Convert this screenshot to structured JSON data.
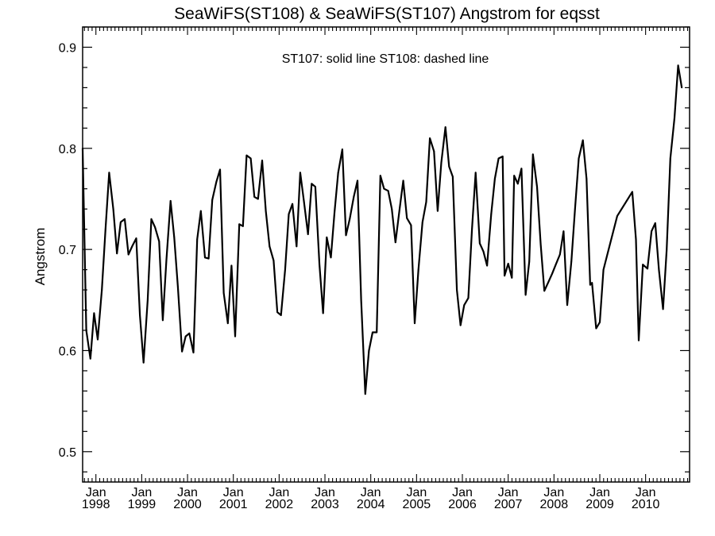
{
  "chart_data": {
    "type": "line",
    "title": "SeaWiFS(ST108) & SeaWiFS(ST107)  Angstrom for eqsst",
    "annotation": "ST107: solid line   ST108: dashed line",
    "xlabel": "",
    "ylabel": "Angstrom",
    "x_unit": "decimal year",
    "xlim": [
      1997.71,
      2010.96
    ],
    "ylim": [
      0.47,
      0.92
    ],
    "y_ticks": [
      0.5,
      0.6,
      0.7,
      0.8,
      0.9
    ],
    "y_tick_labels": [
      "0.5",
      "0.6",
      "0.7",
      "0.8",
      "0.9"
    ],
    "x_ticks": [
      {
        "x": 1998,
        "month": "Jan",
        "year": "1998"
      },
      {
        "x": 1999,
        "month": "Jan",
        "year": "1999"
      },
      {
        "x": 2000,
        "month": "Jan",
        "year": "2000"
      },
      {
        "x": 2001,
        "month": "Jan",
        "year": "2001"
      },
      {
        "x": 2002,
        "month": "Jan",
        "year": "2002"
      },
      {
        "x": 2003,
        "month": "Jan",
        "year": "2003"
      },
      {
        "x": 2004,
        "month": "Jan",
        "year": "2004"
      },
      {
        "x": 2005,
        "month": "Jan",
        "year": "2005"
      },
      {
        "x": 2006,
        "month": "Jan",
        "year": "2006"
      },
      {
        "x": 2007,
        "month": "Jan",
        "year": "2007"
      },
      {
        "x": 2008,
        "month": "Jan",
        "year": "2008"
      },
      {
        "x": 2009,
        "month": "Jan",
        "year": "2009"
      },
      {
        "x": 2010,
        "month": "Jan",
        "year": "2010"
      }
    ],
    "grid": false,
    "series": [
      {
        "name": "ST107",
        "style": "solid",
        "color": "#000000",
        "points": [
          [
            1997.71,
            0.8
          ],
          [
            1997.79,
            0.62
          ],
          [
            1997.88,
            0.592
          ],
          [
            1997.96,
            0.637
          ],
          [
            1998.04,
            0.611
          ],
          [
            1998.13,
            0.66
          ],
          [
            1998.21,
            0.72
          ],
          [
            1998.29,
            0.776
          ],
          [
            1998.38,
            0.74
          ],
          [
            1998.46,
            0.696
          ],
          [
            1998.54,
            0.727
          ],
          [
            1998.63,
            0.73
          ],
          [
            1998.71,
            0.695
          ],
          [
            1998.79,
            0.703
          ],
          [
            1998.88,
            0.711
          ],
          [
            1998.96,
            0.635
          ],
          [
            1999.04,
            0.588
          ],
          [
            1999.13,
            0.65
          ],
          [
            1999.21,
            0.73
          ],
          [
            1999.29,
            0.722
          ],
          [
            1999.38,
            0.708
          ],
          [
            1999.46,
            0.63
          ],
          [
            1999.54,
            0.69
          ],
          [
            1999.63,
            0.748
          ],
          [
            1999.71,
            0.712
          ],
          [
            1999.79,
            0.663
          ],
          [
            1999.88,
            0.599
          ],
          [
            1999.96,
            0.614
          ],
          [
            2000.04,
            0.617
          ],
          [
            2000.13,
            0.598
          ],
          [
            2000.21,
            0.71
          ],
          [
            2000.29,
            0.738
          ],
          [
            2000.38,
            0.692
          ],
          [
            2000.46,
            0.691
          ],
          [
            2000.54,
            0.749
          ],
          [
            2000.63,
            0.767
          ],
          [
            2000.71,
            0.779
          ],
          [
            2000.79,
            0.657
          ],
          [
            2000.88,
            0.627
          ],
          [
            2000.96,
            0.684
          ],
          [
            2001.04,
            0.614
          ],
          [
            2001.13,
            0.725
          ],
          [
            2001.21,
            0.723
          ],
          [
            2001.29,
            0.793
          ],
          [
            2001.38,
            0.79
          ],
          [
            2001.46,
            0.752
          ],
          [
            2001.54,
            0.75
          ],
          [
            2001.63,
            0.788
          ],
          [
            2001.71,
            0.738
          ],
          [
            2001.79,
            0.703
          ],
          [
            2001.88,
            0.689
          ],
          [
            2001.96,
            0.638
          ],
          [
            2002.04,
            0.635
          ],
          [
            2002.13,
            0.68
          ],
          [
            2002.21,
            0.735
          ],
          [
            2002.29,
            0.745
          ],
          [
            2002.38,
            0.703
          ],
          [
            2002.46,
            0.776
          ],
          [
            2002.54,
            0.748
          ],
          [
            2002.63,
            0.715
          ],
          [
            2002.71,
            0.765
          ],
          [
            2002.79,
            0.762
          ],
          [
            2002.88,
            0.685
          ],
          [
            2002.96,
            0.637
          ],
          [
            2003.04,
            0.712
          ],
          [
            2003.13,
            0.692
          ],
          [
            2003.21,
            0.737
          ],
          [
            2003.29,
            0.776
          ],
          [
            2003.38,
            0.799
          ],
          [
            2003.46,
            0.714
          ],
          [
            2003.54,
            0.73
          ],
          [
            2003.63,
            0.752
          ],
          [
            2003.71,
            0.768
          ],
          [
            2003.79,
            0.65
          ],
          [
            2003.88,
            0.557
          ],
          [
            2003.96,
            0.6
          ],
          [
            2004.04,
            0.618
          ],
          [
            2004.13,
            0.618
          ],
          [
            2004.21,
            0.773
          ],
          [
            2004.29,
            0.76
          ],
          [
            2004.38,
            0.758
          ],
          [
            2004.46,
            0.74
          ],
          [
            2004.54,
            0.707
          ],
          [
            2004.63,
            0.74
          ],
          [
            2004.71,
            0.768
          ],
          [
            2004.79,
            0.731
          ],
          [
            2004.88,
            0.724
          ],
          [
            2004.96,
            0.627
          ],
          [
            2005.04,
            0.68
          ],
          [
            2005.13,
            0.727
          ],
          [
            2005.21,
            0.747
          ],
          [
            2005.29,
            0.81
          ],
          [
            2005.38,
            0.797
          ],
          [
            2005.46,
            0.738
          ],
          [
            2005.54,
            0.786
          ],
          [
            2005.63,
            0.821
          ],
          [
            2005.71,
            0.782
          ],
          [
            2005.79,
            0.772
          ],
          [
            2005.88,
            0.66
          ],
          [
            2005.96,
            0.625
          ],
          [
            2006.04,
            0.645
          ],
          [
            2006.13,
            0.652
          ],
          [
            2006.21,
            0.72
          ],
          [
            2006.29,
            0.776
          ],
          [
            2006.38,
            0.706
          ],
          [
            2006.46,
            0.698
          ],
          [
            2006.54,
            0.684
          ],
          [
            2006.63,
            0.735
          ],
          [
            2006.71,
            0.77
          ],
          [
            2006.79,
            0.79
          ],
          [
            2006.88,
            0.792
          ],
          [
            2006.92,
            0.674
          ],
          [
            2007.0,
            0.686
          ],
          [
            2007.08,
            0.672
          ],
          [
            2007.13,
            0.773
          ],
          [
            2007.21,
            0.765
          ],
          [
            2007.29,
            0.78
          ],
          [
            2007.38,
            0.655
          ],
          [
            2007.46,
            0.688
          ],
          [
            2007.54,
            0.794
          ],
          [
            2007.63,
            0.762
          ],
          [
            2007.71,
            0.705
          ],
          [
            2007.79,
            0.659
          ],
          [
            2007.88,
            0.668
          ],
          [
            2007.96,
            0.676
          ],
          [
            2008.04,
            0.685
          ],
          [
            2008.13,
            0.695
          ],
          [
            2008.21,
            0.718
          ],
          [
            2008.29,
            0.645
          ],
          [
            2008.38,
            0.688
          ],
          [
            2008.46,
            0.74
          ],
          [
            2008.54,
            0.79
          ],
          [
            2008.63,
            0.808
          ],
          [
            2008.71,
            0.77
          ],
          [
            2008.79,
            0.665
          ],
          [
            2008.83,
            0.667
          ],
          [
            2008.92,
            0.622
          ],
          [
            2009.0,
            0.628
          ],
          [
            2009.08,
            0.68
          ],
          [
            2009.38,
            0.733
          ],
          [
            2009.71,
            0.757
          ],
          [
            2009.79,
            0.71
          ],
          [
            2009.85,
            0.61
          ],
          [
            2009.94,
            0.685
          ],
          [
            2010.04,
            0.681
          ],
          [
            2010.13,
            0.718
          ],
          [
            2010.21,
            0.726
          ],
          [
            2010.29,
            0.68
          ],
          [
            2010.38,
            0.641
          ],
          [
            2010.46,
            0.7
          ],
          [
            2010.54,
            0.79
          ],
          [
            2010.63,
            0.83
          ],
          [
            2010.71,
            0.882
          ],
          [
            2010.79,
            0.86
          ]
        ]
      }
    ]
  }
}
